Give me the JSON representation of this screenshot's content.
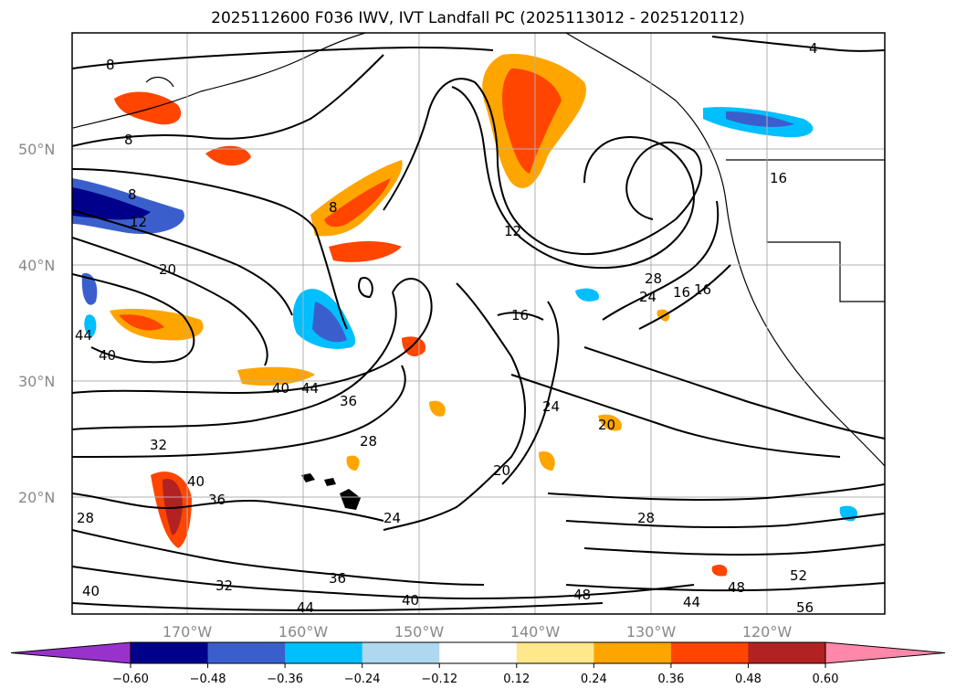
{
  "title": "2025112600 F036 IWV, IVT Landfall PC (2025113012 - 2025120112)",
  "lat_labels": [
    "50°N",
    "40°N",
    "30°N",
    "20°N"
  ],
  "lon_labels": [
    "170°W",
    "160°W",
    "150°W",
    "140°W",
    "130°W",
    "120°W"
  ],
  "contour_labels": [
    "4",
    "8",
    "8",
    "8",
    "8",
    "12",
    "12",
    "16",
    "16",
    "16",
    "20",
    "20",
    "20",
    "24",
    "24",
    "24",
    "28",
    "28",
    "28",
    "28",
    "32",
    "32",
    "36",
    "36",
    "36",
    "40",
    "40",
    "40",
    "40",
    "44",
    "44",
    "44",
    "48",
    "48",
    "52",
    "56",
    "40",
    "44",
    "16"
  ],
  "colorbar": {
    "ticks": [
      "−0.60",
      "−0.48",
      "−0.36",
      "−0.24",
      "−0.12",
      "0.12",
      "0.24",
      "0.36",
      "0.48",
      "0.60"
    ],
    "colors": [
      "#9932cc",
      "#00008b",
      "#3a5fcd",
      "#00bfff",
      "#add8f0",
      "#ffffff",
      "#ffe88a",
      "#ffa500",
      "#ff4500",
      "#b22222",
      "#ff88aa"
    ]
  }
}
